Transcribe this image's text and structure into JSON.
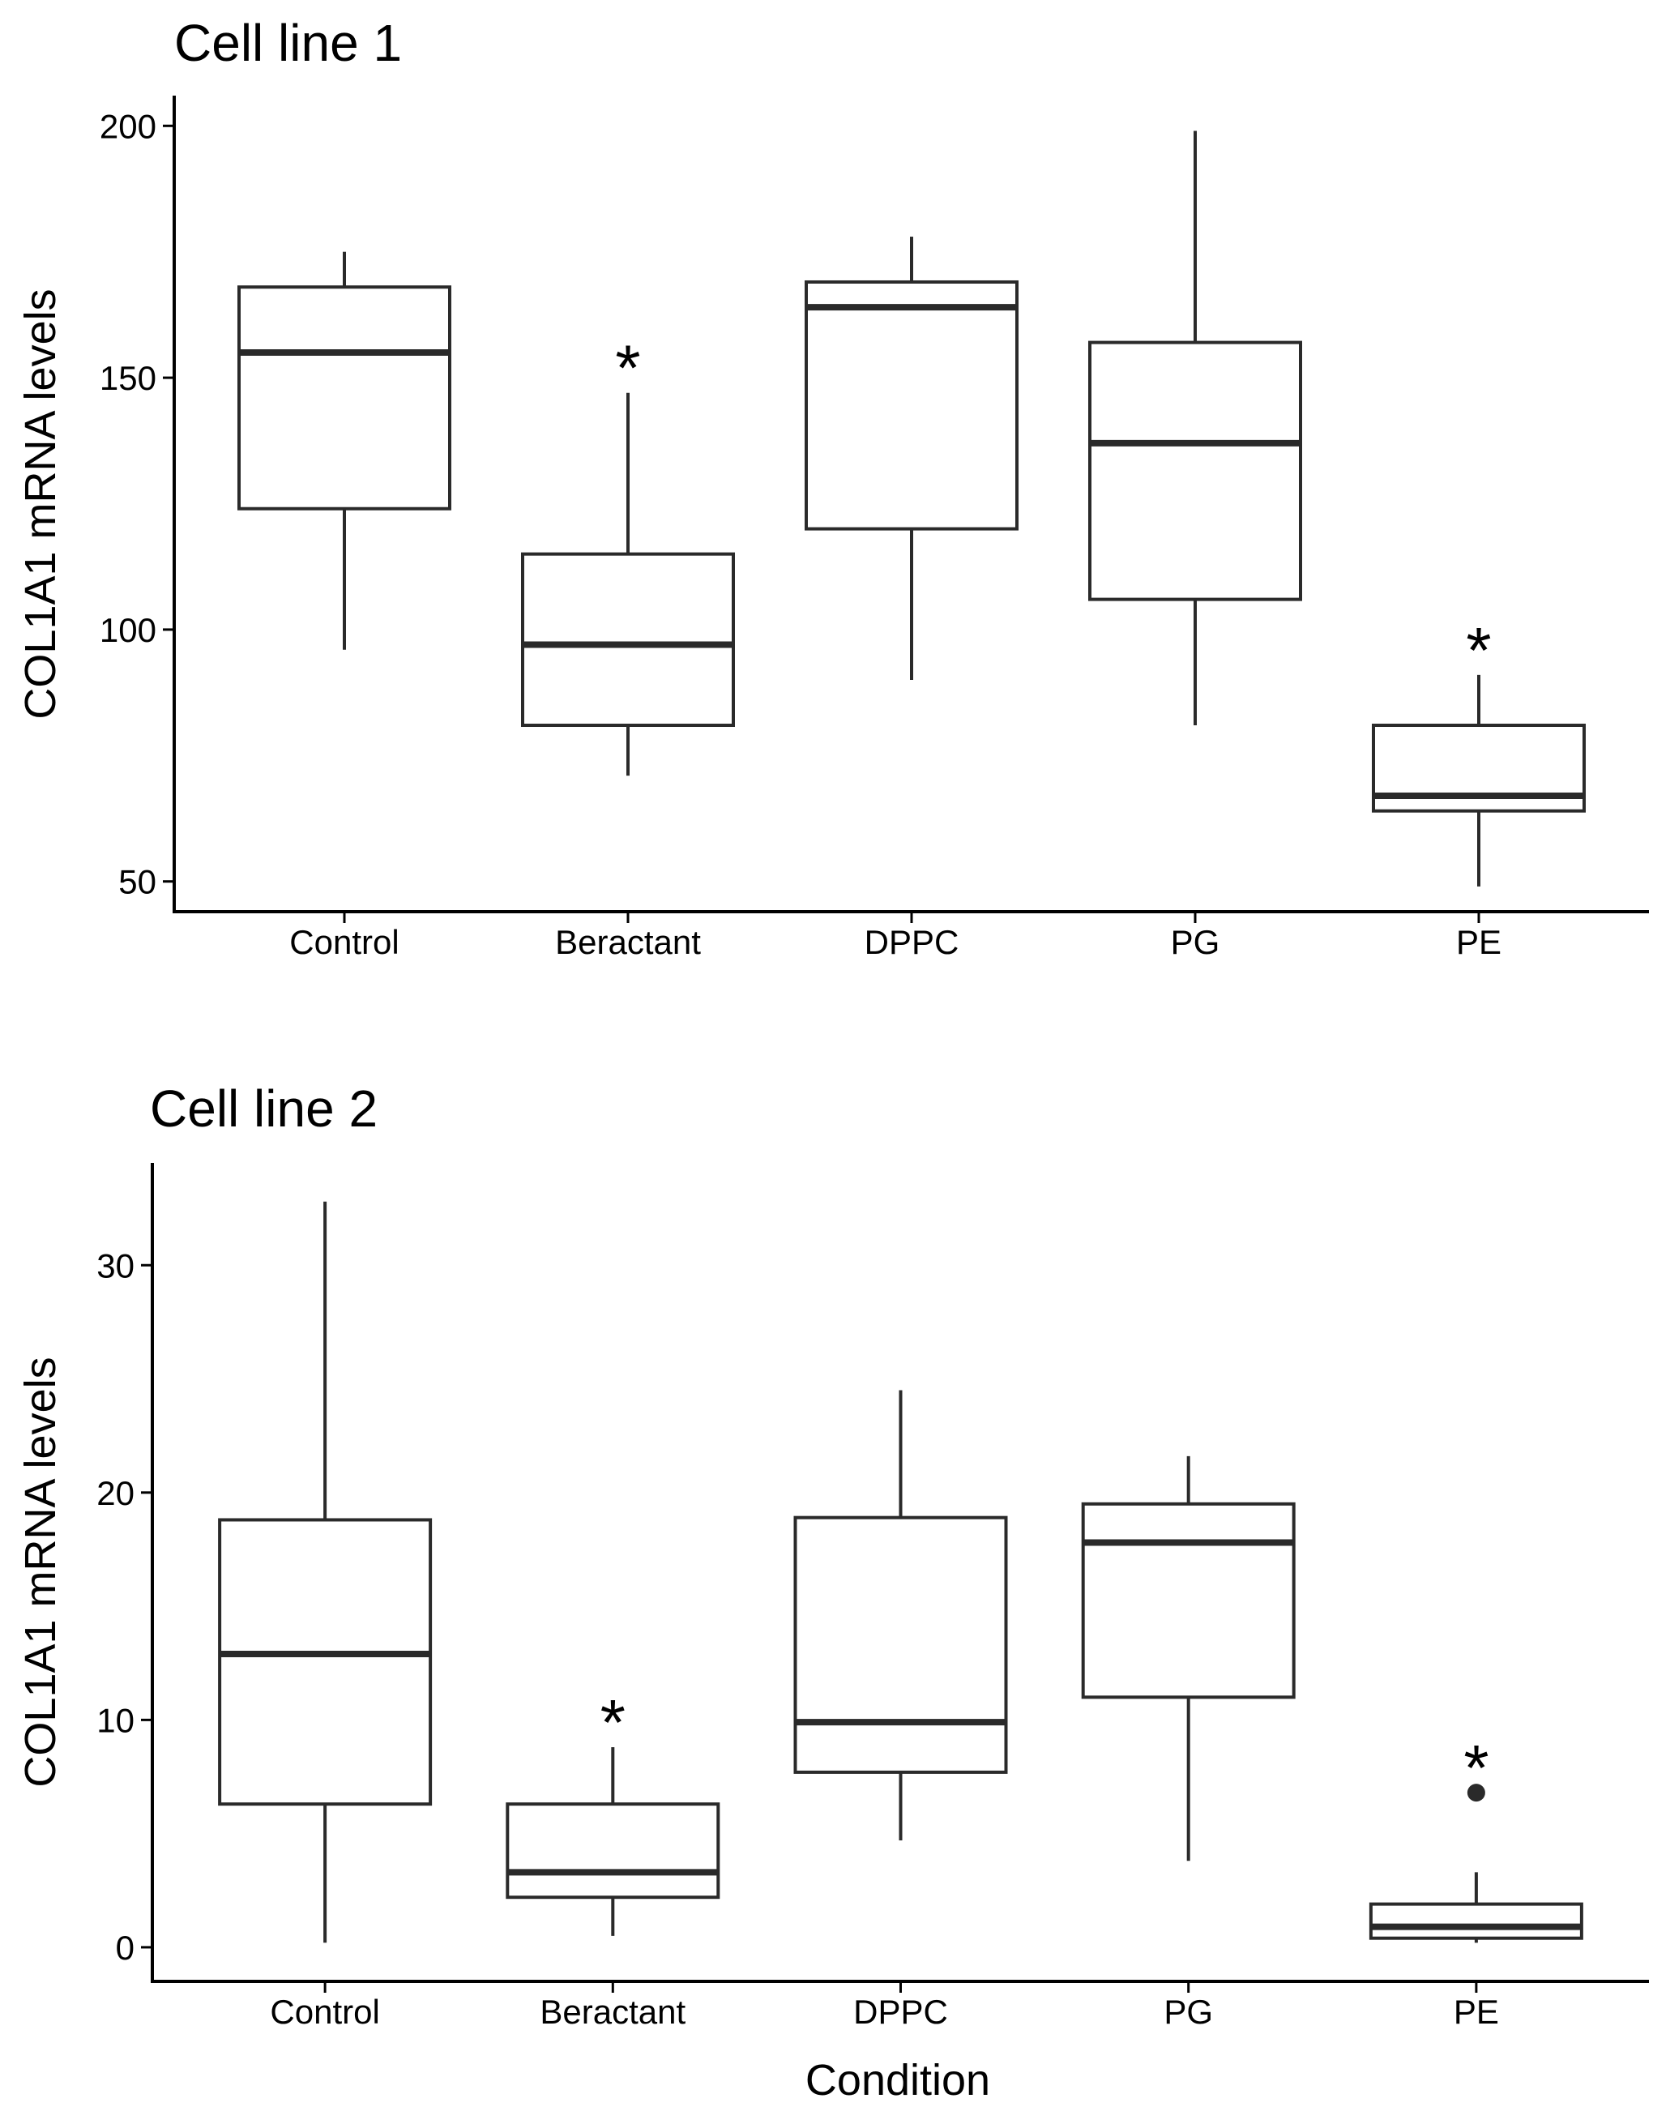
{
  "chart_data": [
    {
      "type": "boxplot",
      "title": "Cell line 1",
      "xlabel": "",
      "ylabel": "COL1A1 mRNA levels",
      "categories": [
        "Control",
        "Beractant",
        "DPPC",
        "PG",
        "PE"
      ],
      "ylim": [
        44,
        206
      ],
      "yticks": [
        50,
        100,
        150,
        200
      ],
      "boxes": [
        {
          "category": "Control",
          "whisker_low": 96,
          "q1": 124,
          "median": 155,
          "q3": 168,
          "whisker_high": 175,
          "outliers": [],
          "annotation": ""
        },
        {
          "category": "Beractant",
          "whisker_low": 71,
          "q1": 81,
          "median": 97,
          "q3": 115,
          "whisker_high": 147,
          "outliers": [],
          "annotation": "*"
        },
        {
          "category": "DPPC",
          "whisker_low": 90,
          "q1": 120,
          "median": 164,
          "q3": 169,
          "whisker_high": 178,
          "outliers": [],
          "annotation": ""
        },
        {
          "category": "PG",
          "whisker_low": 81,
          "q1": 106,
          "median": 137,
          "q3": 157,
          "whisker_high": 199,
          "outliers": [],
          "annotation": ""
        },
        {
          "category": "PE",
          "whisker_low": 49,
          "q1": 64,
          "median": 67,
          "q3": 81,
          "whisker_high": 91,
          "outliers": [],
          "annotation": "*"
        }
      ],
      "grid": false,
      "legend": "none"
    },
    {
      "type": "boxplot",
      "title": "Cell line 2",
      "xlabel": "Condition",
      "ylabel": "COL1A1 mRNA levels",
      "categories": [
        "Control",
        "Beractant",
        "DPPC",
        "PG",
        "PE"
      ],
      "ylim": [
        -1.5,
        34.5
      ],
      "yticks": [
        0,
        10,
        20,
        30
      ],
      "boxes": [
        {
          "category": "Control",
          "whisker_low": 0.2,
          "q1": 6.3,
          "median": 12.9,
          "q3": 18.8,
          "whisker_high": 32.8,
          "outliers": [],
          "annotation": ""
        },
        {
          "category": "Beractant",
          "whisker_low": 0.5,
          "q1": 2.2,
          "median": 3.3,
          "q3": 6.3,
          "whisker_high": 8.8,
          "outliers": [],
          "annotation": "*"
        },
        {
          "category": "DPPC",
          "whisker_low": 4.7,
          "q1": 7.7,
          "median": 9.9,
          "q3": 18.9,
          "whisker_high": 24.5,
          "outliers": [],
          "annotation": ""
        },
        {
          "category": "PG",
          "whisker_low": 3.8,
          "q1": 11.0,
          "median": 17.8,
          "q3": 19.5,
          "whisker_high": 21.6,
          "outliers": [],
          "annotation": ""
        },
        {
          "category": "PE",
          "whisker_low": 0.2,
          "q1": 0.4,
          "median": 0.9,
          "q3": 1.9,
          "whisker_high": 3.3,
          "outliers": [
            6.8
          ],
          "annotation": "*"
        }
      ],
      "grid": false,
      "legend": "none"
    }
  ],
  "colors": {
    "box_fill": "#ffffff",
    "stroke": "#2a2a2a",
    "text": "#000000"
  }
}
